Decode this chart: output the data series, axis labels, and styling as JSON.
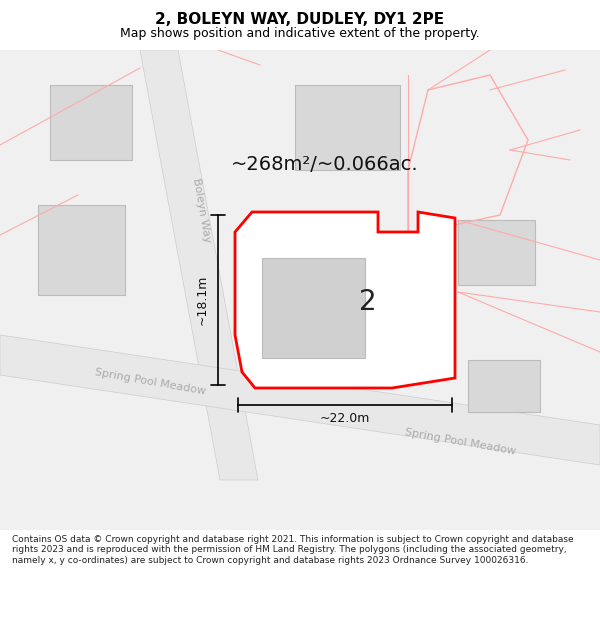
{
  "title": "2, BOLEYN WAY, DUDLEY, DY1 2PE",
  "subtitle": "Map shows position and indicative extent of the property.",
  "footer": "Contains OS data © Crown copyright and database right 2021. This information is subject to Crown copyright and database rights 2023 and is reproduced with the permission of HM Land Registry. The polygons (including the associated geometry, namely x, y co-ordinates) are subject to Crown copyright and database rights 2023 Ordnance Survey 100026316.",
  "area_label": "~268m²/~0.066ac.",
  "width_label": "~22.0m",
  "height_label": "~18.1m",
  "plot_number": "2",
  "bg_color": "#ffffff",
  "road_color": "#e8e8e8",
  "building_fill": "#d8d8d8",
  "building_edge": "#bbbbbb",
  "plot_fill": "#ffffff",
  "plot_edge": "#ff0000",
  "road_label_color": "#aaaaaa",
  "dim_color": "#000000",
  "title_color": "#000000",
  "map_bg": "#f0f0f0",
  "red_faint": "#ffaaaa"
}
